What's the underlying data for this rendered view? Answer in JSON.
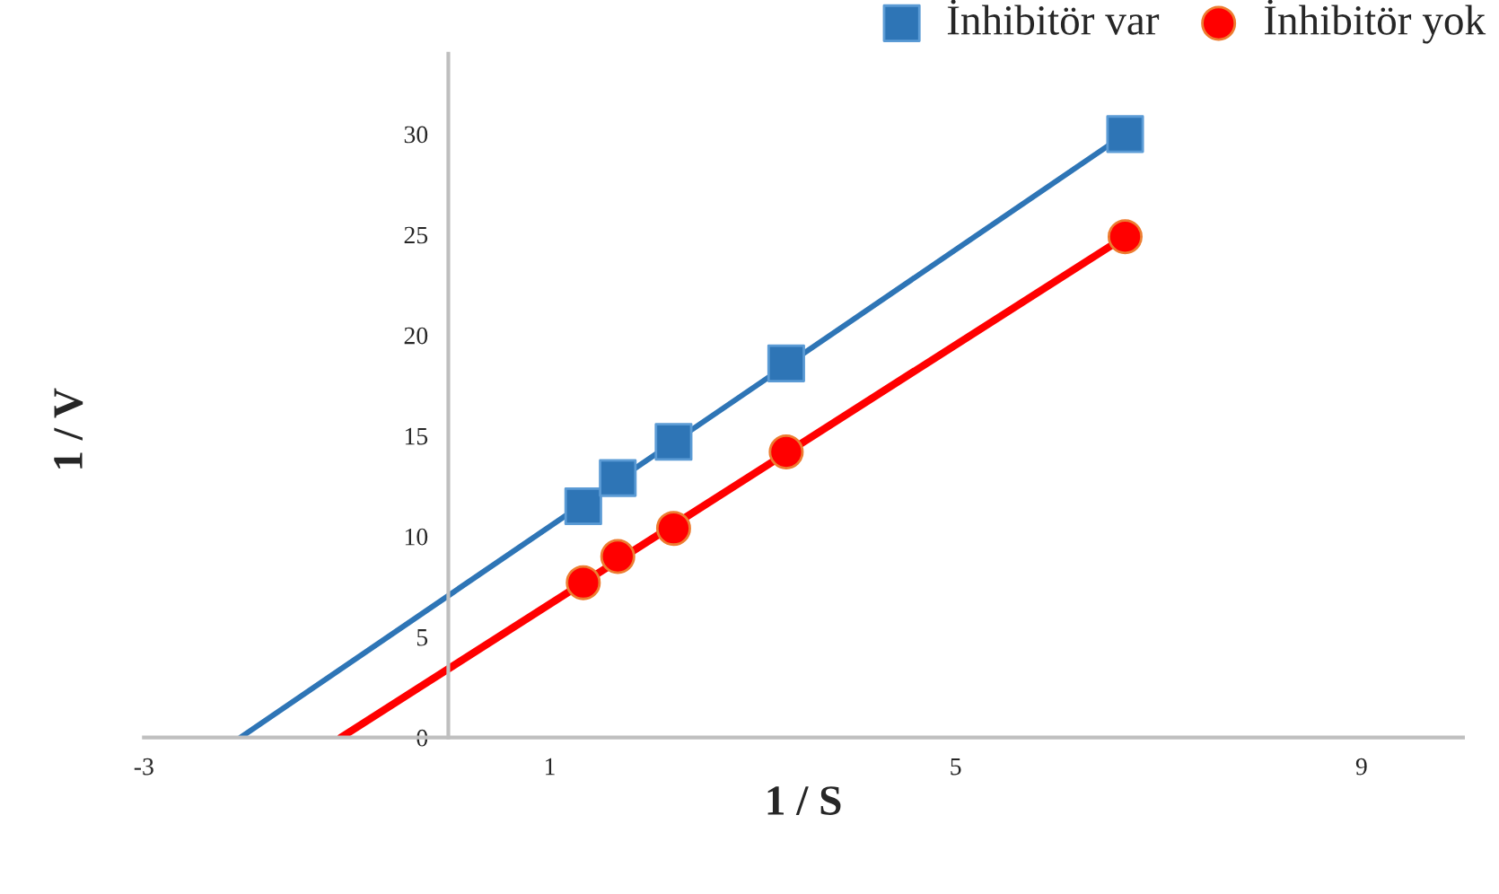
{
  "chart_data": {
    "type": "scatter",
    "xlabel": "1 / S",
    "ylabel": "1 / V",
    "x": [
      1.33,
      1.67,
      2.22,
      3.33,
      6.67
    ],
    "series": [
      {
        "name": "İnhibitör var",
        "color": "#2e75b6",
        "values": [
          11.5,
          12.9,
          14.7,
          18.6,
          30
        ],
        "marker": "square"
      },
      {
        "name": "İnhibitör yok",
        "color": "#ff0000",
        "values": [
          7.7,
          9.0,
          10.4,
          14.2,
          24.9
        ],
        "marker": "circle"
      },
      {
        "type": "line",
        "color": "#2e75b6",
        "x": [
          -2.05,
          6.67
        ],
        "values": [
          0,
          30
        ],
        "marker": "none"
      },
      {
        "type": "line",
        "color": "#ff0000",
        "x": [
          -1.06,
          6.67
        ],
        "values": [
          0,
          24.9
        ],
        "marker": "none"
      }
    ],
    "xlim": [
      -3,
      10
    ],
    "xticks": [
      -3,
      1,
      5,
      9
    ],
    "ylim": [
      0,
      34
    ],
    "yticks": [
      0,
      5,
      10,
      15,
      20,
      25,
      30
    ],
    "grid": false,
    "legend": "top right"
  }
}
